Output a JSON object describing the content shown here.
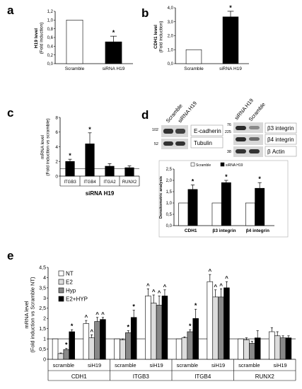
{
  "panels": {
    "a": {
      "letter": "a"
    },
    "b": {
      "letter": "b"
    },
    "c": {
      "letter": "c"
    },
    "d": {
      "letter": "d"
    },
    "e": {
      "letter": "e"
    }
  },
  "blot": {
    "lane_left_1": "Scramble",
    "lane_left_2": "siRNA H19",
    "lane_right_1": "siRNA H19",
    "lane_right_2": "Scramble",
    "mw_left": [
      "102",
      "52"
    ],
    "mw_right": [
      "76",
      "225",
      "38"
    ],
    "protein_left": [
      "E-cadherin",
      "Tubulin"
    ],
    "protein_right": [
      "β3 integrin",
      "β4 integrin",
      "β Actin"
    ]
  },
  "chart_data": [
    {
      "panel": "a",
      "type": "bar",
      "categories": [
        "Scramble",
        "siRNA H19"
      ],
      "values": [
        1.0,
        0.5
      ],
      "errors": [
        0,
        0.13
      ],
      "fills": [
        "#ffffff",
        "#000000"
      ],
      "significance": [
        "",
        "*"
      ],
      "ylabel": [
        "H19 level",
        "(Fold induction)"
      ],
      "ylim": [
        0,
        1.2
      ],
      "yticks": [
        "0,0",
        "0,2",
        "0,4",
        "0,6",
        "0,8",
        "1,0",
        "1,2"
      ]
    },
    {
      "panel": "b",
      "type": "bar",
      "categories": [
        "Scramble",
        "siRNA H19"
      ],
      "values": [
        1.0,
        3.35
      ],
      "errors": [
        0,
        0.4
      ],
      "fills": [
        "#ffffff",
        "#000000"
      ],
      "significance": [
        "",
        "*"
      ],
      "ylabel": [
        "CDH1 level",
        "(Fold induction)"
      ],
      "ylim": [
        0,
        4.0
      ],
      "yticks": [
        "0,0",
        "1,0",
        "2,0",
        "3,0",
        "4,0"
      ]
    },
    {
      "panel": "c",
      "type": "bar",
      "categories": [
        "ITGB3",
        "ITGB4",
        "ITGA2",
        "RUNX2"
      ],
      "values": [
        2.0,
        4.4,
        1.35,
        1.15
      ],
      "errors": [
        0.3,
        1.5,
        0.35,
        0.25
      ],
      "fills": [
        "#000000",
        "#000000",
        "#000000",
        "#000000"
      ],
      "significance": [
        "*",
        "*",
        "",
        ""
      ],
      "ylabel": [
        "mRNA level",
        "(Fold induction vs scramble)"
      ],
      "xlabel": "siRNA H19",
      "ylim": [
        0,
        8
      ],
      "yticks": [
        "0",
        "2",
        "4",
        "6",
        "8"
      ],
      "reference_line": 1
    },
    {
      "panel": "d",
      "type": "bar",
      "categories": [
        "CDH1",
        "β3 integrin",
        "β4 integrin"
      ],
      "series": [
        {
          "name": "Scramble",
          "values": [
            1.0,
            1.0,
            1.0
          ],
          "errors": [
            0,
            0,
            0
          ],
          "color": "#ffffff"
        },
        {
          "name": "siRNA H19",
          "values": [
            1.6,
            1.9,
            1.65
          ],
          "errors": [
            0.2,
            0.1,
            0.25
          ],
          "color": "#000000"
        }
      ],
      "significance": [
        "*",
        "*",
        "*"
      ],
      "ylabel": "Densitometric analysis",
      "ylim": [
        0,
        2.5
      ],
      "yticks": [
        "0,0",
        "0,5",
        "1,0",
        "1,5",
        "2,0",
        "2,5"
      ],
      "legend": "top"
    },
    {
      "panel": "e",
      "type": "bar",
      "group_labels": [
        "CDH1",
        "ITGB3",
        "ITGB4",
        "RUNX2"
      ],
      "sub_labels": [
        "scramble",
        "siH19"
      ],
      "series": [
        {
          "name": "NT",
          "color": "#ffffff",
          "values": [
            1.0,
            1.75,
            1.0,
            3.1,
            1.0,
            3.8,
            1.0,
            1.35
          ],
          "errors": [
            0,
            0.15,
            0,
            0.35,
            0,
            0.35,
            0,
            0.2
          ],
          "marks": [
            "",
            "^",
            "",
            "^",
            "",
            "^",
            "",
            ""
          ]
        },
        {
          "name": "E2",
          "color": "#dddddd",
          "values": [
            0.28,
            1.05,
            0.95,
            2.75,
            1.05,
            3.05,
            0.95,
            1.15
          ],
          "errors": [
            0.03,
            0.15,
            0.05,
            0.4,
            0.05,
            0.35,
            0.1,
            0.2
          ],
          "marks": [
            "",
            "^",
            "",
            "^",
            "",
            "^",
            "",
            ""
          ]
        },
        {
          "name": "Hyp",
          "color": "#888888",
          "values": [
            0.48,
            1.85,
            1.3,
            2.65,
            1.35,
            3.05,
            0.78,
            1.05
          ],
          "errors": [
            0.05,
            0.2,
            0.1,
            0.45,
            0.1,
            0.4,
            0.1,
            0.1
          ],
          "marks": [
            "*",
            "^",
            "*",
            "^",
            "*",
            "^",
            "",
            ""
          ]
        },
        {
          "name": "E2+HYP",
          "color": "#000000",
          "values": [
            1.35,
            1.95,
            2.05,
            3.1,
            2.0,
            3.5,
            1.05,
            1.05
          ],
          "errors": [
            0.1,
            0.1,
            0.35,
            0.3,
            0.45,
            0.3,
            0.35,
            0.1
          ],
          "marks": [
            "*",
            "^",
            "*",
            "^",
            "*",
            "^",
            "",
            ""
          ]
        }
      ],
      "ylabel": [
        "mRNA level",
        "(Fold induction vs Scramble NT)"
      ],
      "ylim": [
        0,
        4.5
      ],
      "yticks": [
        "0",
        "0,5",
        "1",
        "1,5",
        "2",
        "2,5",
        "3",
        "3,5",
        "4",
        "4,5"
      ],
      "reference_line": 1,
      "legend": "top-left"
    }
  ]
}
